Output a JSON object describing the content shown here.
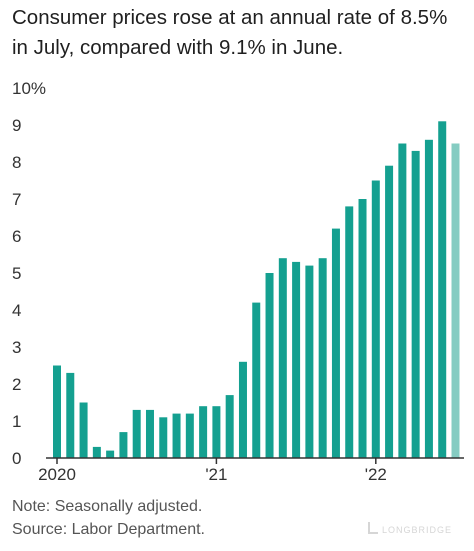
{
  "header": {
    "title": "Consumer prices rose at an annual rate of 8.5% in July, compared with 9.1% in June."
  },
  "footer": {
    "note": "Note: Seasonally adjusted.",
    "source": "Source: Labor Department.",
    "watermark": "LONGBRIDGE"
  },
  "colors": {
    "bar": "#14a090",
    "bar_latest": "#85ccc2",
    "axis": "#333333",
    "grid_text": "#333333"
  },
  "chart_data": {
    "type": "bar",
    "title": "Consumer prices rose at an annual rate of 8.5% in July, compared with 9.1% in June.",
    "xlabel": "",
    "ylabel": "",
    "ylim": [
      0,
      10
    ],
    "y_ticks": [
      0,
      1,
      2,
      3,
      4,
      5,
      6,
      7,
      8,
      9,
      10
    ],
    "y_tick_labels": [
      "0",
      "1",
      "2",
      "3",
      "4",
      "5",
      "6",
      "7",
      "8",
      "9",
      "10%"
    ],
    "x_tick_labels": [
      {
        "label": "2020",
        "category": "Jan 2020"
      },
      {
        "label": "'21",
        "category": "Jan 2021"
      },
      {
        "label": "'22",
        "category": "Jan 2022"
      }
    ],
    "grid": false,
    "legend": "none",
    "highlight_last": true,
    "categories": [
      "Jan 2020",
      "Feb 2020",
      "Mar 2020",
      "Apr 2020",
      "May 2020",
      "Jun 2020",
      "Jul 2020",
      "Aug 2020",
      "Sep 2020",
      "Oct 2020",
      "Nov 2020",
      "Dec 2020",
      "Jan 2021",
      "Feb 2021",
      "Mar 2021",
      "Apr 2021",
      "May 2021",
      "Jun 2021",
      "Jul 2021",
      "Aug 2021",
      "Sep 2021",
      "Oct 2021",
      "Nov 2021",
      "Dec 2021",
      "Jan 2022",
      "Feb 2022",
      "Mar 2022",
      "Apr 2022",
      "May 2022",
      "Jun 2022",
      "Jul 2022"
    ],
    "values": [
      2.5,
      2.3,
      1.5,
      0.3,
      0.2,
      0.7,
      1.3,
      1.3,
      1.1,
      1.2,
      1.2,
      1.4,
      1.4,
      1.7,
      2.6,
      4.2,
      5.0,
      5.4,
      5.3,
      5.2,
      5.4,
      6.2,
      6.8,
      7.0,
      7.5,
      7.9,
      8.5,
      8.3,
      8.6,
      9.1,
      8.5
    ]
  }
}
